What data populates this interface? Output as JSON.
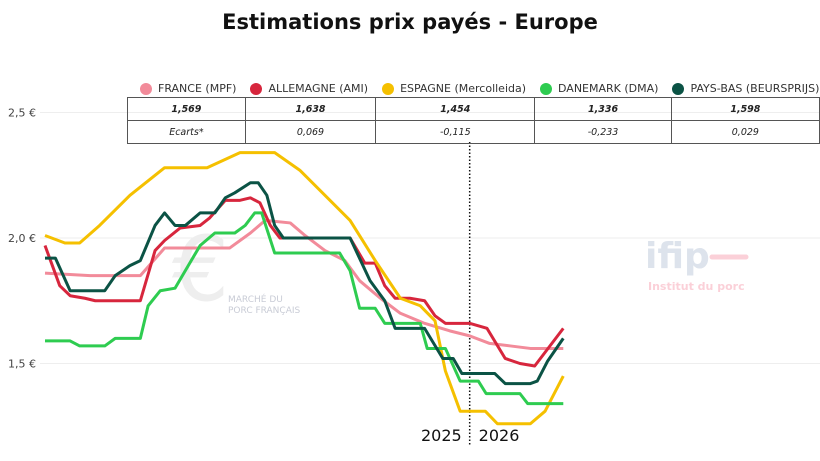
{
  "chart_data": {
    "type": "line",
    "title": "Estimations prix payés - Europe",
    "ylim": [
      1.2,
      2.55
    ],
    "yticks": [
      "2,5 €",
      "2,0 €",
      "1,5 €"
    ],
    "ytick_values": [
      2.5,
      2.0,
      1.5
    ],
    "year_labels": [
      "2025",
      "2026"
    ],
    "year_divider_x": 49,
    "grid": true,
    "legend_placement": "top",
    "series": [
      {
        "name": "FRANCE (MPF)",
        "color": "#f28b9a",
        "points": [
          [
            0,
            1.86
          ],
          [
            5.2,
            1.85
          ],
          [
            11,
            1.85
          ],
          [
            13.8,
            1.96
          ],
          [
            21.3,
            1.96
          ],
          [
            23.7,
            2.02
          ],
          [
            25.4,
            2.07
          ],
          [
            28.3,
            2.06
          ],
          [
            30,
            2.01
          ],
          [
            32.3,
            1.95
          ],
          [
            34.6,
            1.91
          ],
          [
            36.3,
            1.83
          ],
          [
            38.7,
            1.76
          ],
          [
            41,
            1.7
          ],
          [
            43.8,
            1.66
          ],
          [
            46.7,
            1.63
          ],
          [
            49,
            1.61
          ],
          [
            51.3,
            1.58
          ],
          [
            53.7,
            1.57
          ],
          [
            56,
            1.56
          ],
          [
            59.8,
            1.56
          ]
        ]
      },
      {
        "name": "ALLEMAGNE (AMI)",
        "color": "#d7263d",
        "points": [
          [
            0,
            1.97
          ],
          [
            1.7,
            1.81
          ],
          [
            2.9,
            1.77
          ],
          [
            4.6,
            1.76
          ],
          [
            5.8,
            1.75
          ],
          [
            11,
            1.75
          ],
          [
            12.7,
            1.95
          ],
          [
            13.8,
            1.99
          ],
          [
            15.6,
            2.04
          ],
          [
            17.9,
            2.05
          ],
          [
            19,
            2.08
          ],
          [
            20.8,
            2.15
          ],
          [
            22.5,
            2.15
          ],
          [
            23.7,
            2.16
          ],
          [
            24.8,
            2.14
          ],
          [
            26,
            2.05
          ],
          [
            27.1,
            2.0
          ],
          [
            35.2,
            2.0
          ],
          [
            36.9,
            1.9
          ],
          [
            38.1,
            1.9
          ],
          [
            39.2,
            1.81
          ],
          [
            40.4,
            1.76
          ],
          [
            42.1,
            1.76
          ],
          [
            43.8,
            1.75
          ],
          [
            45,
            1.69
          ],
          [
            46.2,
            1.66
          ],
          [
            49,
            1.66
          ],
          [
            51,
            1.64
          ],
          [
            53.1,
            1.52
          ],
          [
            54.8,
            1.5
          ],
          [
            56.5,
            1.49
          ],
          [
            59.8,
            1.64
          ]
        ]
      },
      {
        "name": "ESPAGNE (Mercolleida)",
        "color": "#f5c000",
        "points": [
          [
            0,
            2.01
          ],
          [
            2.3,
            1.98
          ],
          [
            4,
            1.98
          ],
          [
            6.3,
            2.05
          ],
          [
            9.8,
            2.17
          ],
          [
            13.8,
            2.28
          ],
          [
            18.7,
            2.28
          ],
          [
            22.5,
            2.34
          ],
          [
            26.5,
            2.34
          ],
          [
            29.4,
            2.27
          ],
          [
            35.2,
            2.07
          ],
          [
            38.1,
            1.91
          ],
          [
            41,
            1.76
          ],
          [
            43.3,
            1.73
          ],
          [
            45,
            1.67
          ],
          [
            46.2,
            1.47
          ],
          [
            47.9,
            1.31
          ],
          [
            50.8,
            1.31
          ],
          [
            52.2,
            1.26
          ],
          [
            56,
            1.26
          ],
          [
            57.7,
            1.31
          ],
          [
            59.8,
            1.45
          ]
        ]
      },
      {
        "name": "DANEMARK (DMA)",
        "color": "#2ecc50",
        "points": [
          [
            0,
            1.59
          ],
          [
            2.9,
            1.59
          ],
          [
            4,
            1.57
          ],
          [
            6.9,
            1.57
          ],
          [
            8.1,
            1.6
          ],
          [
            11,
            1.6
          ],
          [
            11.9,
            1.73
          ],
          [
            13.3,
            1.79
          ],
          [
            15,
            1.8
          ],
          [
            16.7,
            1.9
          ],
          [
            17.9,
            1.97
          ],
          [
            19.6,
            2.02
          ],
          [
            21.9,
            2.02
          ],
          [
            23.1,
            2.05
          ],
          [
            24.2,
            2.1
          ],
          [
            25,
            2.1
          ],
          [
            26.5,
            1.94
          ],
          [
            34,
            1.94
          ],
          [
            35.2,
            1.87
          ],
          [
            36.3,
            1.72
          ],
          [
            38.1,
            1.72
          ],
          [
            39.2,
            1.66
          ],
          [
            43.3,
            1.66
          ],
          [
            44.1,
            1.56
          ],
          [
            46.2,
            1.56
          ],
          [
            47.9,
            1.43
          ],
          [
            50,
            1.43
          ],
          [
            50.9,
            1.38
          ],
          [
            54.8,
            1.38
          ],
          [
            55.7,
            1.34
          ],
          [
            59.8,
            1.34
          ]
        ]
      },
      {
        "name": "PAYS-BAS (BEURSPRIJS)",
        "color": "#0b5345",
        "points": [
          [
            0,
            1.92
          ],
          [
            1.2,
            1.92
          ],
          [
            2.9,
            1.79
          ],
          [
            6.9,
            1.79
          ],
          [
            8.1,
            1.85
          ],
          [
            9.8,
            1.89
          ],
          [
            11,
            1.91
          ],
          [
            12.7,
            2.05
          ],
          [
            13.8,
            2.1
          ],
          [
            15,
            2.05
          ],
          [
            16.2,
            2.05
          ],
          [
            17.9,
            2.1
          ],
          [
            19.6,
            2.1
          ],
          [
            20.8,
            2.16
          ],
          [
            21.9,
            2.18
          ],
          [
            23.7,
            2.22
          ],
          [
            24.6,
            2.22
          ],
          [
            25.6,
            2.17
          ],
          [
            26.5,
            2.05
          ],
          [
            27.5,
            2.0
          ],
          [
            35.2,
            2.0
          ],
          [
            37.5,
            1.83
          ],
          [
            39.2,
            1.75
          ],
          [
            40.4,
            1.64
          ],
          [
            43.8,
            1.64
          ],
          [
            45.9,
            1.52
          ],
          [
            47.1,
            1.52
          ],
          [
            48.1,
            1.46
          ],
          [
            51.9,
            1.46
          ],
          [
            53.1,
            1.42
          ],
          [
            56,
            1.42
          ],
          [
            56.8,
            1.43
          ],
          [
            58,
            1.51
          ],
          [
            59.8,
            1.6
          ]
        ]
      }
    ],
    "table": {
      "values": [
        "1,569",
        "1,638",
        "1,454",
        "1,336",
        "1,598"
      ],
      "ecarts": [
        "Ecarts*",
        "0,069",
        "-0,115",
        "-0,233",
        "0,029"
      ]
    }
  },
  "watermarks": {
    "mpf": "MARCHÉ DU PORC FRANÇAIS",
    "ifip": "ifip",
    "ifip_sub": "Institut du porc"
  }
}
